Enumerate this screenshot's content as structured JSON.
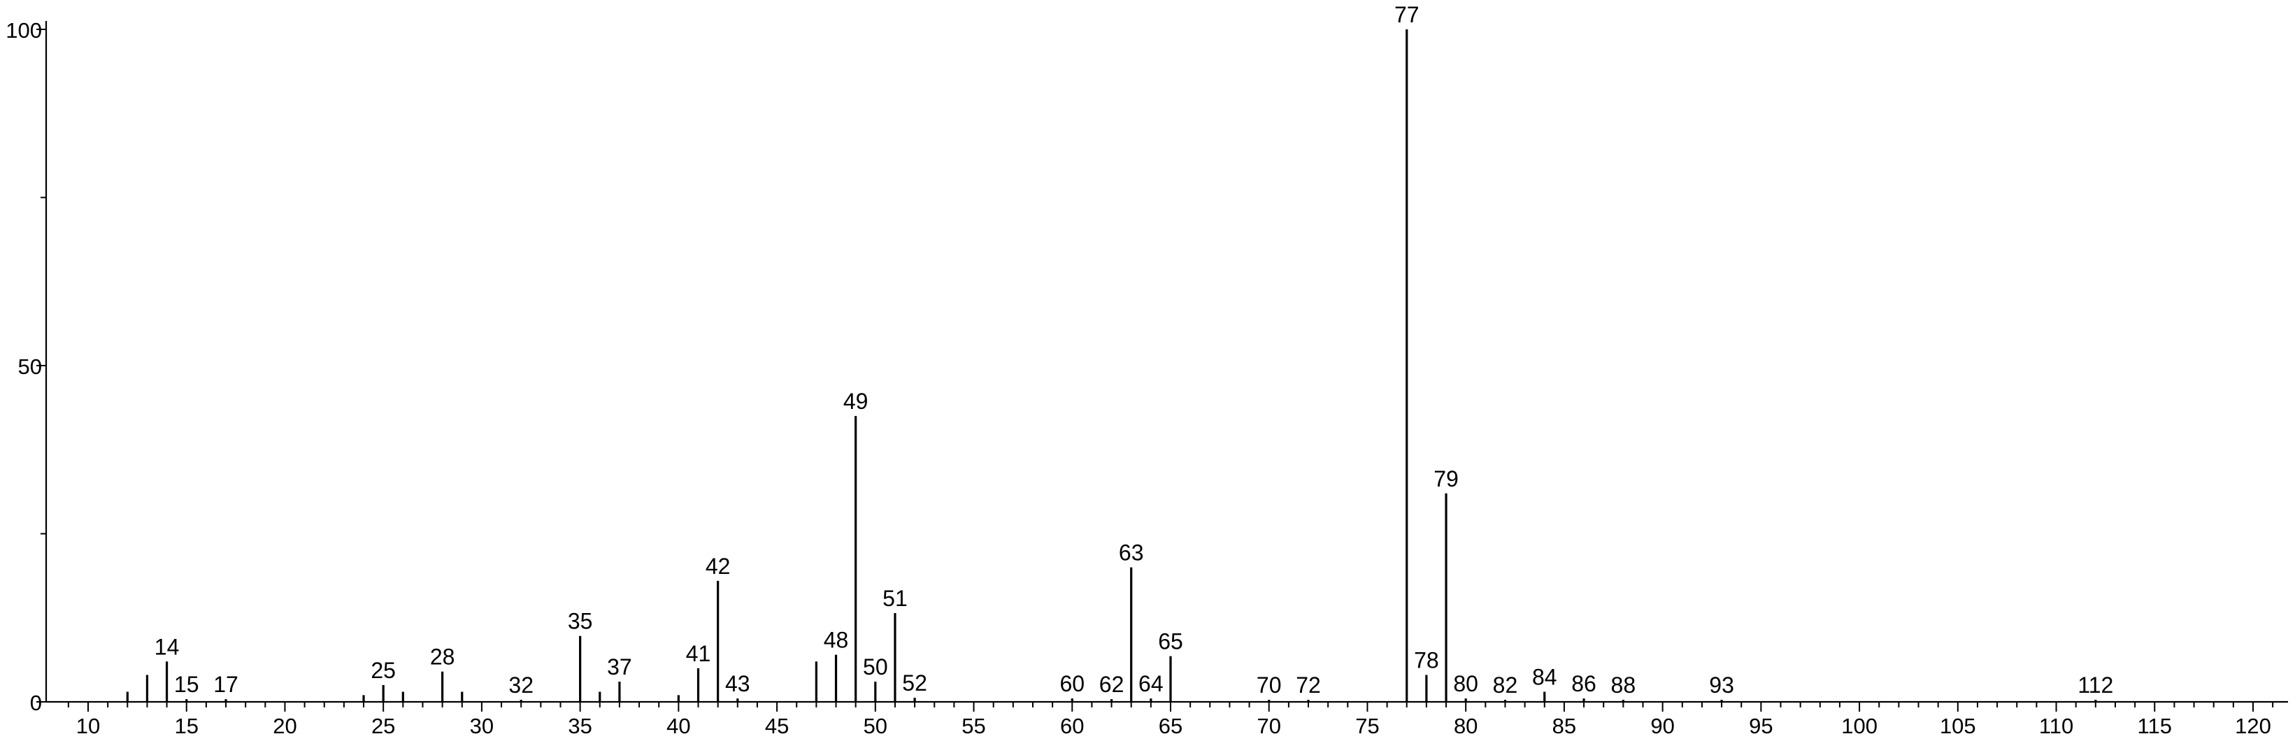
{
  "chart_data": {
    "type": "bar",
    "title": "",
    "xlabel": "",
    "ylabel": "",
    "xlim": [
      8,
      122
    ],
    "ylim": [
      0,
      100
    ],
    "x_ticks": [
      10,
      15,
      20,
      25,
      30,
      35,
      40,
      45,
      50,
      55,
      60,
      65,
      70,
      75,
      80,
      85,
      90,
      95,
      100,
      105,
      110,
      115,
      120
    ],
    "y_ticks": [
      0,
      50,
      100
    ],
    "grid": false,
    "series": [
      {
        "x": [
          12,
          13,
          14,
          15,
          17,
          24,
          25,
          26,
          28,
          29,
          32,
          35,
          36,
          37,
          40,
          41,
          42,
          43,
          47,
          48,
          49,
          50,
          51,
          52,
          60,
          62,
          63,
          64,
          65,
          70,
          72,
          77,
          78,
          79,
          80,
          82,
          84,
          86,
          88,
          93,
          112
        ],
        "values": [
          1.5,
          4,
          6,
          0.4,
          0.4,
          1,
          2.5,
          1.5,
          4.5,
          1.5,
          0.3,
          9.8,
          1.5,
          3,
          1,
          5,
          18,
          0.5,
          6,
          7,
          42.5,
          3,
          13.2,
          0.6,
          0.5,
          0.4,
          20,
          0.5,
          6.8,
          0.3,
          0.3,
          100,
          4,
          31,
          0.5,
          0.3,
          1.5,
          0.5,
          0.3,
          0.3,
          0.3
        ]
      }
    ],
    "peak_labels": [
      {
        "x": 14,
        "label": "14"
      },
      {
        "x": 15,
        "label": "15"
      },
      {
        "x": 17,
        "label": "17"
      },
      {
        "x": 25,
        "label": "25"
      },
      {
        "x": 28,
        "label": "28"
      },
      {
        "x": 32,
        "label": "32"
      },
      {
        "x": 35,
        "label": "35"
      },
      {
        "x": 37,
        "label": "37"
      },
      {
        "x": 41,
        "label": "41"
      },
      {
        "x": 42,
        "label": "42"
      },
      {
        "x": 43,
        "label": "43"
      },
      {
        "x": 48,
        "label": "48"
      },
      {
        "x": 49,
        "label": "49"
      },
      {
        "x": 50,
        "label": "50"
      },
      {
        "x": 51,
        "label": "51"
      },
      {
        "x": 52,
        "label": "52"
      },
      {
        "x": 60,
        "label": "60"
      },
      {
        "x": 62,
        "label": "62"
      },
      {
        "x": 63,
        "label": "63"
      },
      {
        "x": 64,
        "label": "64"
      },
      {
        "x": 65,
        "label": "65"
      },
      {
        "x": 70,
        "label": "70"
      },
      {
        "x": 72,
        "label": "72"
      },
      {
        "x": 77,
        "label": "77"
      },
      {
        "x": 78,
        "label": "78"
      },
      {
        "x": 79,
        "label": "79"
      },
      {
        "x": 80,
        "label": "80"
      },
      {
        "x": 82,
        "label": "82"
      },
      {
        "x": 84,
        "label": "84"
      },
      {
        "x": 86,
        "label": "86"
      },
      {
        "x": 88,
        "label": "88"
      },
      {
        "x": 93,
        "label": "93"
      },
      {
        "x": 112,
        "label": "112"
      }
    ]
  }
}
